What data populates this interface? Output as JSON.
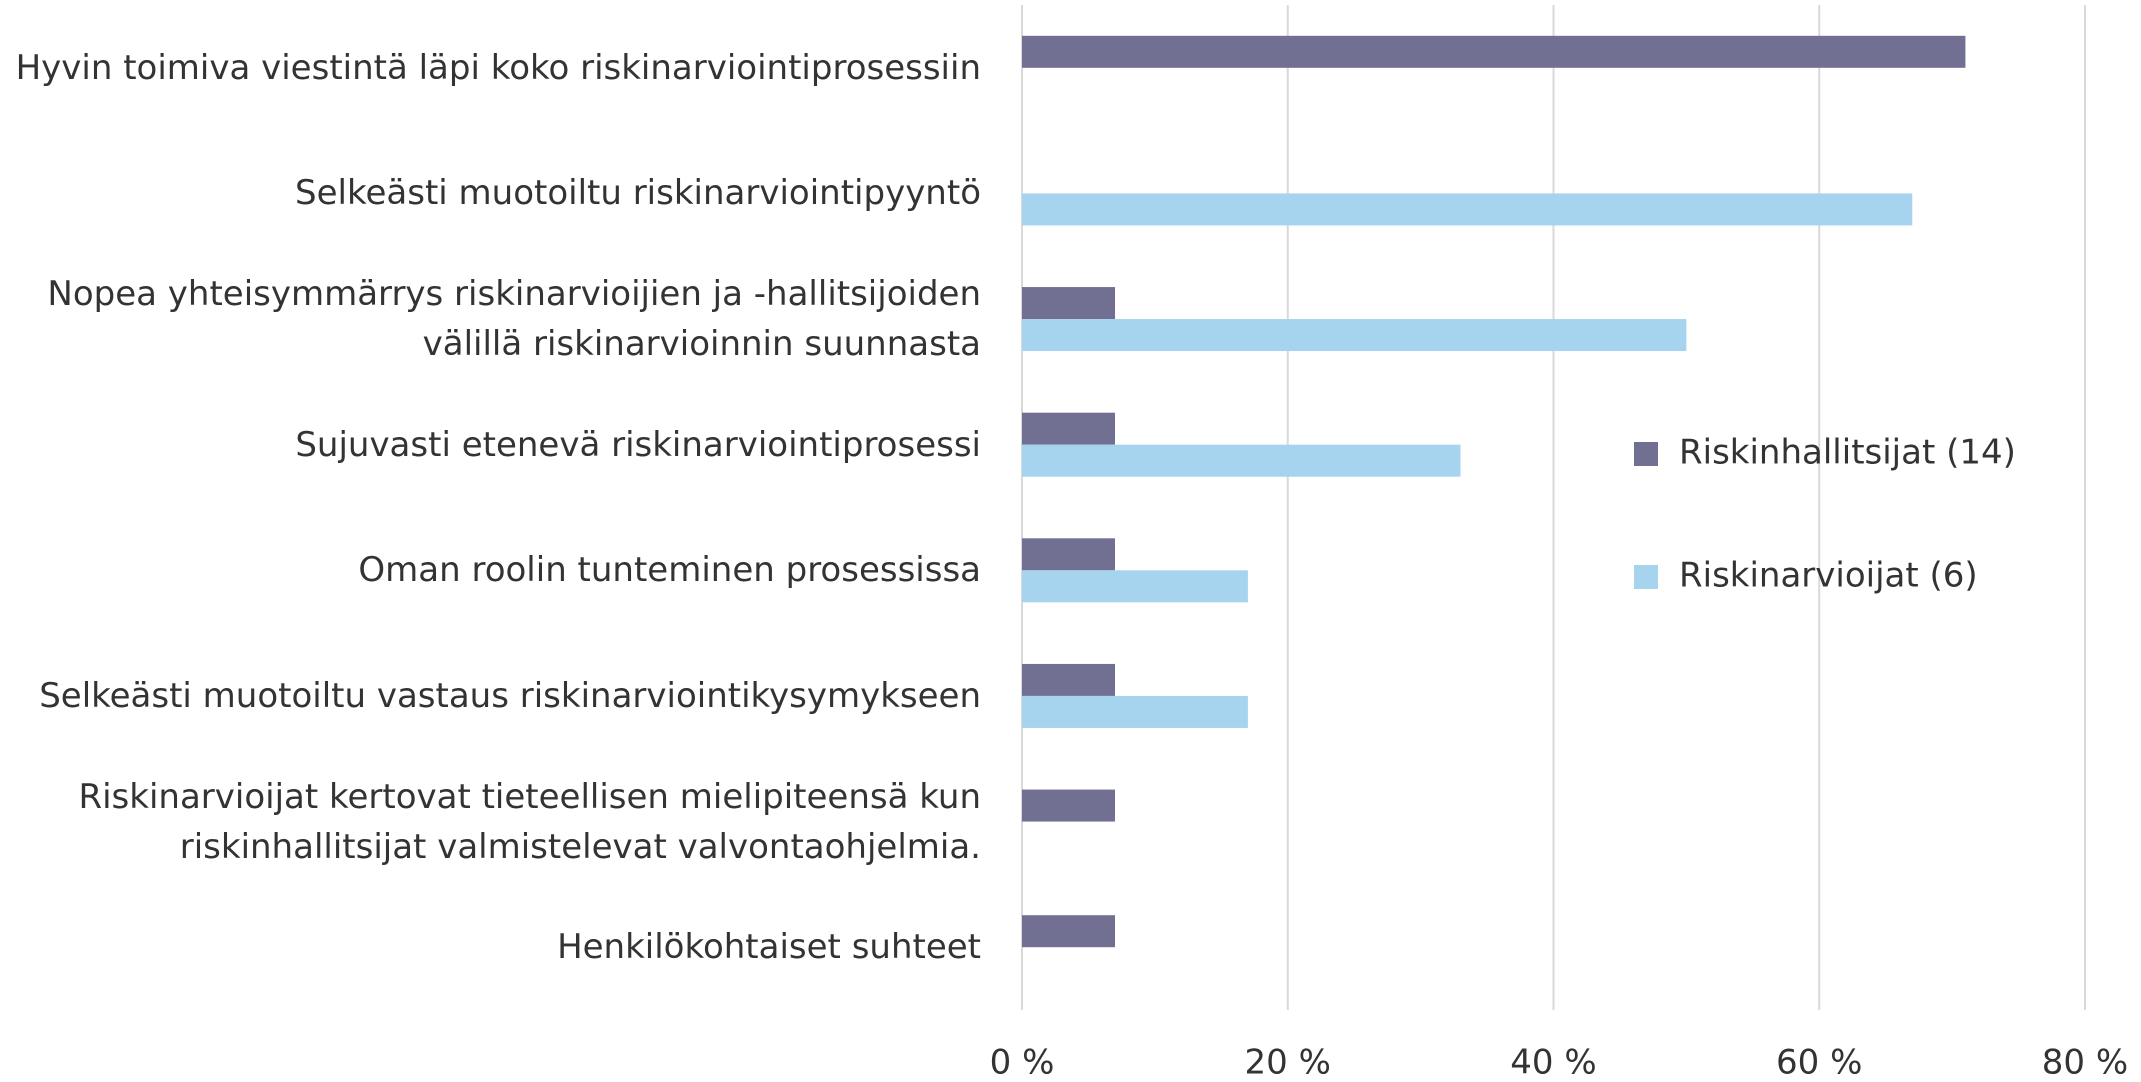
{
  "chart_data": {
    "type": "bar",
    "orientation": "horizontal",
    "categories": [
      "Hyvin toimiva viestintä läpi koko riskinarviointiprosessiin",
      "Selkeästi muotoiltu riskinarviointipyyntö",
      "Nopea yhteisymmärrys riskinarvioijien ja -hallitsijoiden\nvälillä riskinarvioinnin suunnasta",
      "Sujuvasti etenevä riskinarviointiprosessi",
      "Oman roolin tunteminen prosessissa",
      "Selkeästi muotoiltu vastaus riskinarviointikysymykseen",
      "Riskinarvioijat kertovat tieteellisen mielipiteensä kun\nriskinhallitsijat valmistelevat valvontaohjelmia.",
      "Henkilökohtaiset suhteet"
    ],
    "series": [
      {
        "name": "Riskinhallitsijat (14)",
        "color": "#717093",
        "values": [
          71,
          0,
          7,
          7,
          7,
          7,
          7,
          7
        ]
      },
      {
        "name": "Riskinarvioijat (6)",
        "color": "#a6d3ee",
        "values": [
          0,
          67,
          50,
          33,
          17,
          17,
          0,
          0
        ]
      }
    ],
    "xlim": [
      0,
      80
    ],
    "xticks": [
      {
        "value": 0,
        "label": "0 %"
      },
      {
        "value": 20,
        "label": "20 %"
      },
      {
        "value": 40,
        "label": "40 %"
      },
      {
        "value": 60,
        "label": "60 %"
      },
      {
        "value": 80,
        "label": "80 %"
      }
    ],
    "grid": true,
    "legend": "right"
  }
}
